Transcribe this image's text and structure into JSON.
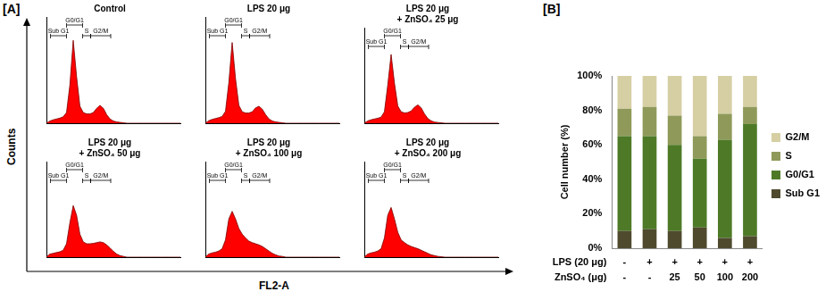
{
  "figure": {
    "panels": [
      {
        "label": "[A]",
        "x_label": "FL2-A",
        "y_label": "Counts"
      },
      {
        "label": "[B]"
      }
    ]
  },
  "chart_data": [
    {
      "type": "line",
      "title": "Control",
      "color": "#ff0000",
      "xlim": [
        0,
        1000
      ],
      "ylim": [
        0,
        250
      ],
      "tick_labels": false,
      "x": [
        0,
        25,
        50,
        75,
        100,
        125,
        150,
        175,
        200,
        225,
        250,
        275,
        300,
        325,
        350,
        375,
        400,
        425,
        450,
        475,
        500,
        525,
        550,
        575,
        600,
        625,
        650,
        675,
        700,
        725,
        750,
        775,
        800,
        825,
        850,
        875,
        900,
        925,
        950,
        975,
        1000
      ],
      "values": [
        0,
        5,
        8,
        10,
        12,
        15,
        25,
        90,
        195,
        110,
        40,
        25,
        22,
        22,
        25,
        35,
        42,
        35,
        20,
        10,
        5,
        3,
        2,
        1,
        0,
        0,
        0,
        0,
        0,
        0,
        0,
        0,
        0,
        0,
        0,
        0,
        0,
        0,
        0,
        0,
        0
      ],
      "gates": [
        {
          "label": "Sub G1",
          "range": [
            30,
            150
          ]
        },
        {
          "label": "G0/G1",
          "range": [
            150,
            270
          ]
        },
        {
          "label": "S",
          "range": [
            270,
            330
          ]
        },
        {
          "label": "G2/M",
          "range": [
            330,
            480
          ]
        }
      ]
    },
    {
      "type": "line",
      "title": "LPS 20 μg",
      "color": "#ff0000",
      "xlim": [
        0,
        1000
      ],
      "ylim": [
        0,
        250
      ],
      "tick_labels": false,
      "x": [
        0,
        25,
        50,
        75,
        100,
        125,
        150,
        175,
        200,
        225,
        250,
        275,
        300,
        325,
        350,
        375,
        400,
        425,
        450,
        475,
        500,
        525,
        550,
        575,
        600,
        625,
        650,
        675,
        700,
        725,
        750,
        775,
        800,
        825,
        850,
        875,
        900,
        925,
        950,
        975,
        1000
      ],
      "values": [
        0,
        6,
        9,
        11,
        13,
        16,
        28,
        95,
        190,
        105,
        42,
        27,
        24,
        24,
        27,
        36,
        40,
        33,
        20,
        10,
        5,
        3,
        2,
        1,
        0,
        0,
        0,
        0,
        0,
        0,
        0,
        0,
        0,
        0,
        0,
        0,
        0,
        0,
        0,
        0,
        0
      ],
      "gates": [
        {
          "label": "Sub G1",
          "range": [
            30,
            150
          ]
        },
        {
          "label": "G0/G1",
          "range": [
            150,
            270
          ]
        },
        {
          "label": "S",
          "range": [
            270,
            330
          ]
        },
        {
          "label": "G2/M",
          "range": [
            330,
            480
          ]
        }
      ]
    },
    {
      "type": "line",
      "title": "LPS 20 μg + ZnSO₄ 25 μg",
      "color": "#ff0000",
      "xlim": [
        0,
        1000
      ],
      "ylim": [
        0,
        250
      ],
      "tick_labels": false,
      "x": [
        0,
        25,
        50,
        75,
        100,
        125,
        150,
        175,
        200,
        225,
        250,
        275,
        300,
        325,
        350,
        375,
        400,
        425,
        450,
        475,
        500,
        525,
        550,
        575,
        600,
        625,
        650,
        675,
        700,
        725,
        750,
        775,
        800,
        825,
        850,
        875,
        900,
        925,
        950,
        975,
        1000
      ],
      "values": [
        0,
        6,
        9,
        11,
        13,
        16,
        30,
        100,
        180,
        105,
        45,
        30,
        27,
        28,
        32,
        42,
        48,
        40,
        24,
        12,
        6,
        3,
        2,
        1,
        0,
        0,
        0,
        0,
        0,
        0,
        0,
        0,
        0,
        0,
        0,
        0,
        0,
        0,
        0,
        0,
        0
      ],
      "gates": [
        {
          "label": "Sub G1",
          "range": [
            30,
            150
          ]
        },
        {
          "label": "G0/G1",
          "range": [
            150,
            270
          ]
        },
        {
          "label": "S",
          "range": [
            270,
            330
          ]
        },
        {
          "label": "G2/M",
          "range": [
            330,
            480
          ]
        }
      ]
    },
    {
      "type": "line",
      "title": "LPS 20 μg + ZnSO₄ 50 μg",
      "color": "#ff0000",
      "xlim": [
        0,
        1000
      ],
      "ylim": [
        0,
        250
      ],
      "tick_labels": false,
      "x": [
        0,
        25,
        50,
        75,
        100,
        125,
        150,
        175,
        200,
        225,
        250,
        275,
        300,
        325,
        350,
        375,
        400,
        425,
        450,
        475,
        500,
        525,
        550,
        575,
        600,
        625,
        650,
        675,
        700,
        725,
        750,
        775,
        800,
        825,
        850,
        875,
        900,
        925,
        950,
        975,
        1000
      ],
      "values": [
        0,
        8,
        10,
        12,
        14,
        18,
        35,
        90,
        135,
        110,
        60,
        40,
        35,
        35,
        36,
        38,
        40,
        38,
        32,
        24,
        15,
        8,
        4,
        2,
        0,
        0,
        0,
        0,
        0,
        0,
        0,
        0,
        0,
        0,
        0,
        0,
        0,
        0,
        0,
        0,
        0
      ],
      "gates": [
        {
          "label": "Sub G1",
          "range": [
            30,
            150
          ]
        },
        {
          "label": "G0/G1",
          "range": [
            150,
            270
          ]
        },
        {
          "label": "S",
          "range": [
            270,
            330
          ]
        },
        {
          "label": "G2/M",
          "range": [
            330,
            480
          ]
        }
      ]
    },
    {
      "type": "line",
      "title": "LPS 20 μg + ZnSO₄ 100 μg",
      "color": "#ff0000",
      "xlim": [
        0,
        1000
      ],
      "ylim": [
        0,
        250
      ],
      "tick_labels": false,
      "x": [
        0,
        25,
        50,
        75,
        100,
        125,
        150,
        175,
        200,
        225,
        250,
        275,
        300,
        325,
        350,
        375,
        400,
        425,
        450,
        475,
        500,
        525,
        550,
        575,
        600,
        625,
        650,
        675,
        700,
        725,
        750,
        775,
        800,
        825,
        850,
        875,
        900,
        925,
        950,
        975,
        1000
      ],
      "values": [
        0,
        8,
        11,
        13,
        16,
        22,
        45,
        100,
        120,
        100,
        75,
        60,
        50,
        42,
        38,
        35,
        32,
        28,
        22,
        16,
        10,
        6,
        3,
        2,
        0,
        0,
        0,
        0,
        0,
        0,
        0,
        0,
        0,
        0,
        0,
        0,
        0,
        0,
        0,
        0,
        0
      ],
      "gates": [
        {
          "label": "Sub G1",
          "range": [
            30,
            150
          ]
        },
        {
          "label": "G0/G1",
          "range": [
            150,
            270
          ]
        },
        {
          "label": "S",
          "range": [
            270,
            330
          ]
        },
        {
          "label": "G2/M",
          "range": [
            330,
            480
          ]
        }
      ]
    },
    {
      "type": "line",
      "title": "LPS 20 μg + ZnSO₄ 200 μg",
      "color": "#ff0000",
      "xlim": [
        0,
        1000
      ],
      "ylim": [
        0,
        250
      ],
      "tick_labels": false,
      "x": [
        0,
        25,
        50,
        75,
        100,
        125,
        150,
        175,
        200,
        225,
        250,
        275,
        300,
        325,
        350,
        375,
        400,
        425,
        450,
        475,
        500,
        525,
        550,
        575,
        600,
        625,
        650,
        675,
        700,
        725,
        750,
        775,
        800,
        825,
        850,
        875,
        900,
        925,
        950,
        975,
        1000
      ],
      "values": [
        0,
        8,
        11,
        13,
        16,
        22,
        50,
        110,
        130,
        100,
        65,
        45,
        38,
        32,
        28,
        25,
        22,
        18,
        14,
        10,
        6,
        4,
        2,
        1,
        0,
        0,
        0,
        0,
        0,
        0,
        0,
        0,
        0,
        0,
        0,
        0,
        0,
        0,
        0,
        0,
        0
      ],
      "gates": [
        {
          "label": "Sub G1",
          "range": [
            30,
            150
          ]
        },
        {
          "label": "G0/G1",
          "range": [
            150,
            270
          ]
        },
        {
          "label": "S",
          "range": [
            270,
            330
          ]
        },
        {
          "label": "G2/M",
          "range": [
            330,
            480
          ]
        }
      ]
    },
    {
      "type": "bar",
      "stacked": true,
      "grid": false,
      "legend": "right",
      "y_label": "Cell number (%)",
      "categories": [
        [
          "-",
          "-"
        ],
        [
          "+",
          "-"
        ],
        [
          "+",
          "25"
        ],
        [
          "+",
          "50"
        ],
        [
          "+",
          "100"
        ],
        [
          "+",
          "200"
        ]
      ],
      "category_rows": [
        "LPS (20 μg)",
        "ZnSO₄ (μg)"
      ],
      "ylim": [
        0,
        100
      ],
      "yticks": [
        {
          "value": 0,
          "label": "0%"
        },
        {
          "value": 20,
          "label": "20%"
        },
        {
          "value": 40,
          "label": "40%"
        },
        {
          "value": 60,
          "label": "60%"
        },
        {
          "value": 80,
          "label": "80%"
        },
        {
          "value": 100,
          "label": "100%"
        }
      ],
      "series": [
        {
          "name": "Sub G1",
          "color": "#4f4a2e",
          "values": [
            10,
            11,
            10,
            12,
            6,
            7
          ]
        },
        {
          "name": "G0/G1",
          "color": "#4e7a27",
          "values": [
            55,
            54,
            50,
            40,
            57,
            65
          ]
        },
        {
          "name": "S",
          "color": "#8f9a5a",
          "values": [
            16,
            17,
            17,
            13,
            15,
            10
          ]
        },
        {
          "name": "G2/M",
          "color": "#d6cfa4",
          "values": [
            19,
            18,
            23,
            35,
            22,
            18
          ]
        }
      ]
    }
  ]
}
